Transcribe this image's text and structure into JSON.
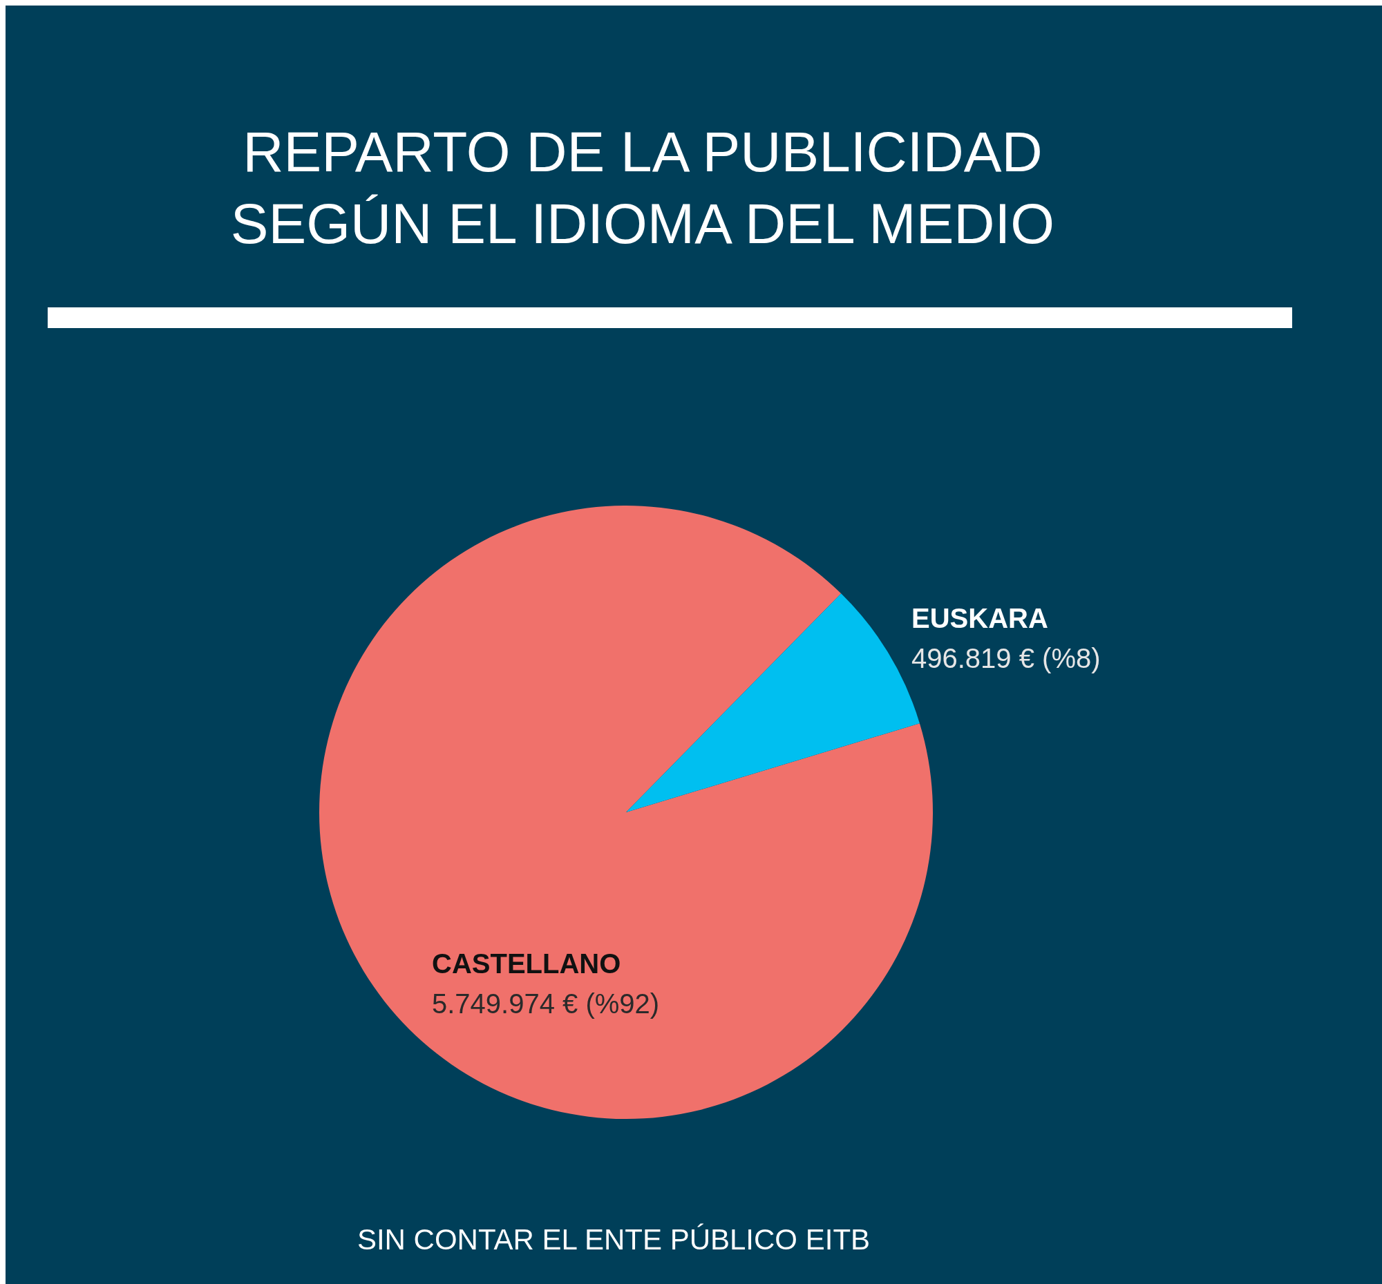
{
  "chart_data": {
    "type": "pie",
    "title": "REPARTO DE LA PUBLICIDAD\nSEGÚN EL IDIOMA DEL MEDIO",
    "categories": [
      "CASTELLANO",
      "EUSKARA"
    ],
    "values": [
      5749974,
      496819
    ],
    "colors": [
      "#f0716b",
      "#00bff0"
    ],
    "value_labels": [
      "5.749.974 € (%92)",
      "496.819 € (%8)"
    ],
    "annotations": [
      "SIN CONTAR EL ENTE PÚBLICO EITB"
    ]
  }
}
